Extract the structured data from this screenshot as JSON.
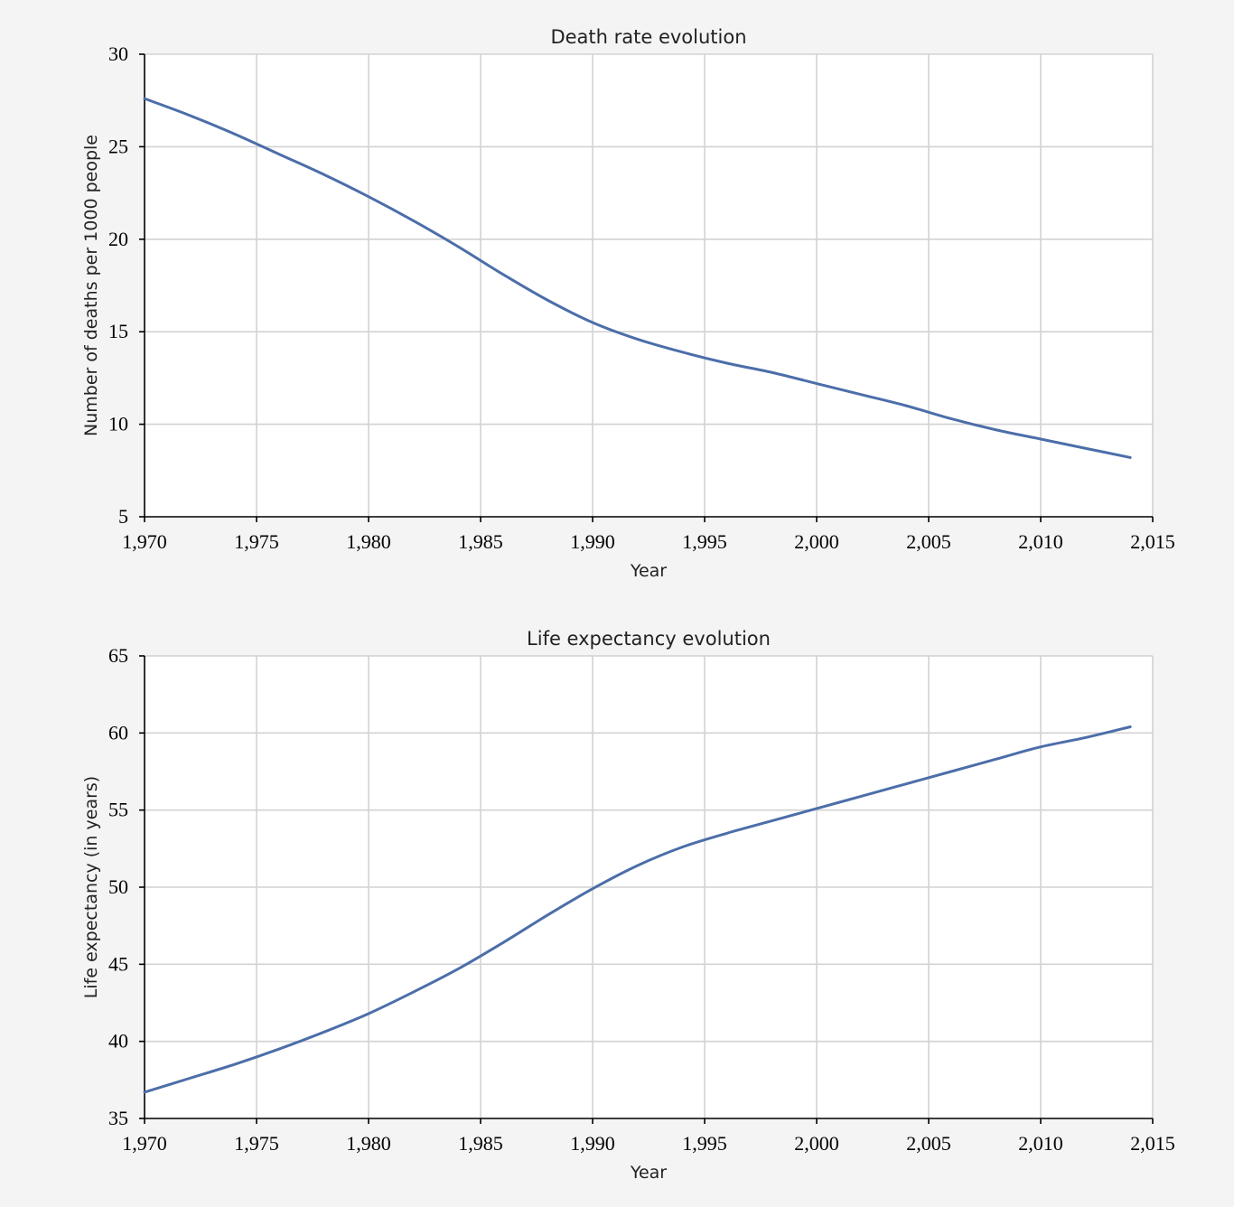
{
  "style": {
    "line_color": "#4c6ea9",
    "grid_color": "#d2d2d2",
    "background": "#f4f4f4"
  },
  "chart_data": [
    {
      "type": "line",
      "title": "Death rate evolution",
      "xlabel": "Year",
      "ylabel": "Number of deaths per 1000 people",
      "xlim": [
        1970,
        2015
      ],
      "ylim": [
        5,
        30
      ],
      "grid": true,
      "x_ticks": [
        "1,970",
        "1,975",
        "1,980",
        "1,985",
        "1,990",
        "1,995",
        "2,000",
        "2,005",
        "2,010",
        "2,015"
      ],
      "y_ticks": [
        "5",
        "10",
        "15",
        "20",
        "25",
        "30"
      ],
      "series": [
        {
          "x": [
            1970,
            1972,
            1974,
            1976,
            1978,
            1980,
            1982,
            1984,
            1986,
            1988,
            1990,
            1992,
            1994,
            1996,
            1998,
            2000,
            2002,
            2004,
            2006,
            2008,
            2010,
            2012,
            2014
          ],
          "values": [
            27.6,
            26.7,
            25.7,
            24.6,
            23.5,
            22.3,
            21.0,
            19.6,
            18.1,
            16.7,
            15.5,
            14.6,
            13.9,
            13.3,
            12.8,
            12.2,
            11.6,
            11.0,
            10.3,
            9.7,
            9.2,
            8.7,
            8.2
          ]
        }
      ]
    },
    {
      "type": "line",
      "title": "Life expectancy evolution",
      "xlabel": "Year",
      "ylabel": "Life expectancy (in years)",
      "xlim": [
        1970,
        2015
      ],
      "ylim": [
        35,
        65
      ],
      "grid": true,
      "x_ticks": [
        "1,970",
        "1,975",
        "1,980",
        "1,985",
        "1,990",
        "1,995",
        "2,000",
        "2,005",
        "2,010",
        "2,015"
      ],
      "y_ticks": [
        "35",
        "40",
        "45",
        "50",
        "55",
        "60",
        "65"
      ],
      "series": [
        {
          "x": [
            1970,
            1972,
            1974,
            1976,
            1978,
            1980,
            1982,
            1984,
            1986,
            1988,
            1990,
            1992,
            1994,
            1996,
            1998,
            2000,
            2002,
            2004,
            2006,
            2008,
            2010,
            2012,
            2014
          ],
          "values": [
            36.7,
            37.6,
            38.5,
            39.5,
            40.6,
            41.8,
            43.2,
            44.7,
            46.4,
            48.2,
            49.9,
            51.4,
            52.6,
            53.5,
            54.3,
            55.1,
            55.9,
            56.7,
            57.5,
            58.3,
            59.1,
            59.7,
            60.4
          ]
        }
      ]
    }
  ]
}
